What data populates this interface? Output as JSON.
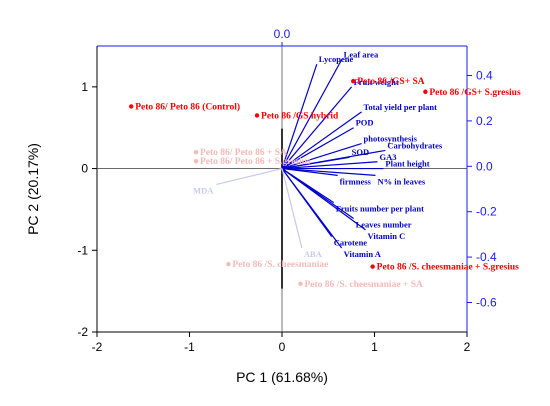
{
  "chart_data": {
    "type": "scatter",
    "subtype": "pca-biplot",
    "title": "",
    "xlabel": "PC 1 (61.68%)",
    "ylabel": "PC 2 (20.17%)",
    "xlim": [
      -2,
      2
    ],
    "ylim": [
      -2,
      1.5
    ],
    "x_ticks": [
      "-2",
      "-1",
      "0",
      "1",
      "2"
    ],
    "y_ticks": [
      "-2",
      "-1",
      "0",
      "1"
    ],
    "loading_axis": {
      "x_tick": "0.0",
      "y_ticks": [
        "0.4",
        "0.2",
        "0.0",
        "-0.2",
        "-0.4",
        "-0.6"
      ],
      "ylim": [
        -0.73,
        0.53
      ],
      "color": "#1a1aff"
    },
    "colors": {
      "highlight_points": "#ff0000",
      "faded_points": "#f4b9b9",
      "highlight_vectors": "#0000cc",
      "faded_vectors": "#c9c9ee",
      "axes": "#000000",
      "loading_axes": "#1a1aff"
    },
    "observations": [
      {
        "label": "Peto 86/ Peto 86 (Control)",
        "x": -1.63,
        "y": 0.76,
        "highlight": true
      },
      {
        "label": "Peto 86 /GS hybrid",
        "x": -0.27,
        "y": 0.65,
        "highlight": true
      },
      {
        "label": "Peto 86 /GS+ SA",
        "x": 0.77,
        "y": 1.07,
        "highlight": true
      },
      {
        "label": "Peto 86 /GS+ S.gresius",
        "x": 1.55,
        "y": 0.94,
        "highlight": true
      },
      {
        "label": "Peto 86 /S. cheesmaniae + S.gresius",
        "x": 0.98,
        "y": -1.2,
        "highlight": true
      },
      {
        "label": "Peto 86/ Peto 86 + SA",
        "x": -0.93,
        "y": 0.2,
        "highlight": false
      },
      {
        "label": "Peto 86/ Peto 86 + S.gresius",
        "x": -0.93,
        "y": 0.09,
        "highlight": false
      },
      {
        "label": "Peto 86 /S. cheesmaniae",
        "x": -0.58,
        "y": -1.17,
        "highlight": false
      },
      {
        "label": "Peto 86 /S. cheesmaniae + SA",
        "x": 0.2,
        "y": -1.41,
        "highlight": false
      }
    ],
    "loadings": [
      {
        "label": "Lycopene",
        "x": 0.175,
        "y": 0.46,
        "highlight": true
      },
      {
        "label": "Leaf area",
        "x": 0.3,
        "y": 0.48,
        "highlight": true
      },
      {
        "label": "Fruit weight",
        "x": 0.35,
        "y": 0.36,
        "highlight": true
      },
      {
        "label": "Total yield per plant",
        "x": 0.4,
        "y": 0.25,
        "highlight": true
      },
      {
        "label": "POD",
        "x": 0.36,
        "y": 0.18,
        "highlight": true
      },
      {
        "label": "photosynthesis",
        "x": 0.4,
        "y": 0.11,
        "highlight": true
      },
      {
        "label": "Carbohydrates",
        "x": 0.52,
        "y": 0.08,
        "highlight": true
      },
      {
        "label": "SOD",
        "x": 0.34,
        "y": 0.05,
        "highlight": true
      },
      {
        "label": "GA3",
        "x": 0.48,
        "y": 0.03,
        "highlight": true
      },
      {
        "label": "Plant height",
        "x": 0.51,
        "y": 0.0,
        "highlight": true
      },
      {
        "label": "N% in leaves",
        "x": 0.47,
        "y": -0.03,
        "highlight": true
      },
      {
        "label": "firmness",
        "x": 0.28,
        "y": -0.03,
        "highlight": true
      },
      {
        "label": "Fruits number per plant",
        "x": 0.26,
        "y": -0.15,
        "highlight": true
      },
      {
        "label": "Leaves number",
        "x": 0.36,
        "y": -0.22,
        "highlight": true
      },
      {
        "label": "Vitamin C",
        "x": 0.42,
        "y": -0.27,
        "highlight": true
      },
      {
        "label": "Carotene",
        "x": 0.25,
        "y": -0.3,
        "highlight": true
      },
      {
        "label": "Vitamin A",
        "x": 0.3,
        "y": -0.35,
        "highlight": true
      },
      {
        "label": "MDA",
        "x": -0.33,
        "y": -0.07,
        "highlight": false
      },
      {
        "label": "ABA",
        "x": 0.1,
        "y": -0.35,
        "highlight": false
      }
    ]
  }
}
